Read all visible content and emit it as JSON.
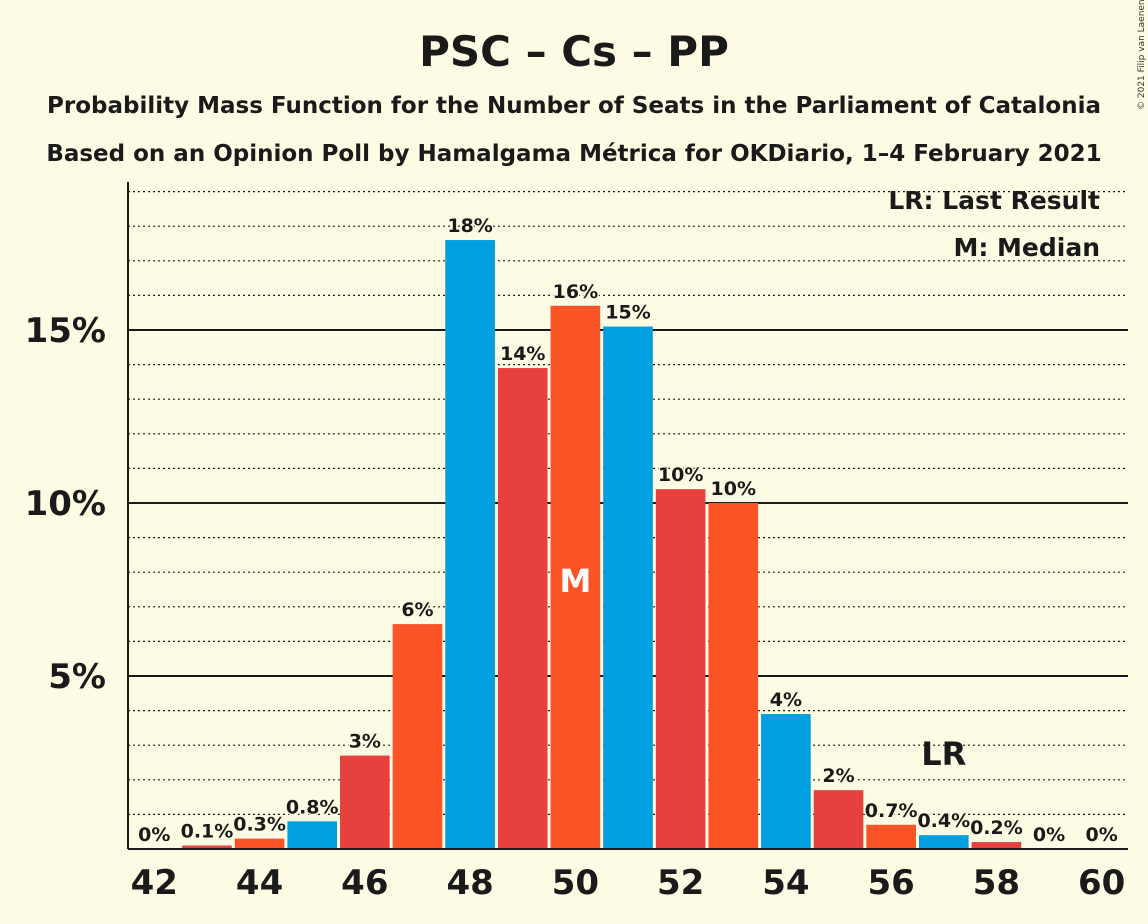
{
  "copyright": "© 2021 Filip van Laenen",
  "chart_data": {
    "type": "bar",
    "title": "PSC – Cs – PP",
    "subtitle_1": "Probability Mass Function for the Number of Seats in the Parliament of Catalonia",
    "subtitle_2": "Based on an Opinion Poll by Hamalgama Métrica for OKDiario, 1–4 February 2021",
    "legend": {
      "lr": "LR: Last Result",
      "m": "M: Median"
    },
    "x": [
      42,
      43,
      44,
      45,
      46,
      47,
      48,
      49,
      50,
      51,
      52,
      53,
      54,
      55,
      56,
      57,
      58,
      59,
      60
    ],
    "values": [
      0,
      0.1,
      0.3,
      0.8,
      2.7,
      6.5,
      17.6,
      13.9,
      15.7,
      15.1,
      10.4,
      10.0,
      3.9,
      1.7,
      0.7,
      0.4,
      0.2,
      0,
      0
    ],
    "data_labels": [
      "0%",
      "0.1%",
      "0.3%",
      "0.8%",
      "3%",
      "6%",
      "18%",
      "14%",
      "16%",
      "15%",
      "10%",
      "10%",
      "4%",
      "2%",
      "0.7%",
      "0.4%",
      "0.2%",
      "0%",
      "0%"
    ],
    "xticks": [
      "42",
      "44",
      "46",
      "48",
      "50",
      "52",
      "54",
      "56",
      "58",
      "60"
    ],
    "yticks": [
      "5%",
      "10%",
      "15%"
    ],
    "ytick_values": [
      5,
      10,
      15
    ],
    "ylim": [
      0,
      19.2
    ],
    "median_seat": 50,
    "median_label": "M",
    "last_result_seat": 57,
    "last_result_label": "LR",
    "colors": [
      "#e8403c",
      "#fa5427",
      "#00a0e0"
    ],
    "background": "#fefbe4"
  }
}
